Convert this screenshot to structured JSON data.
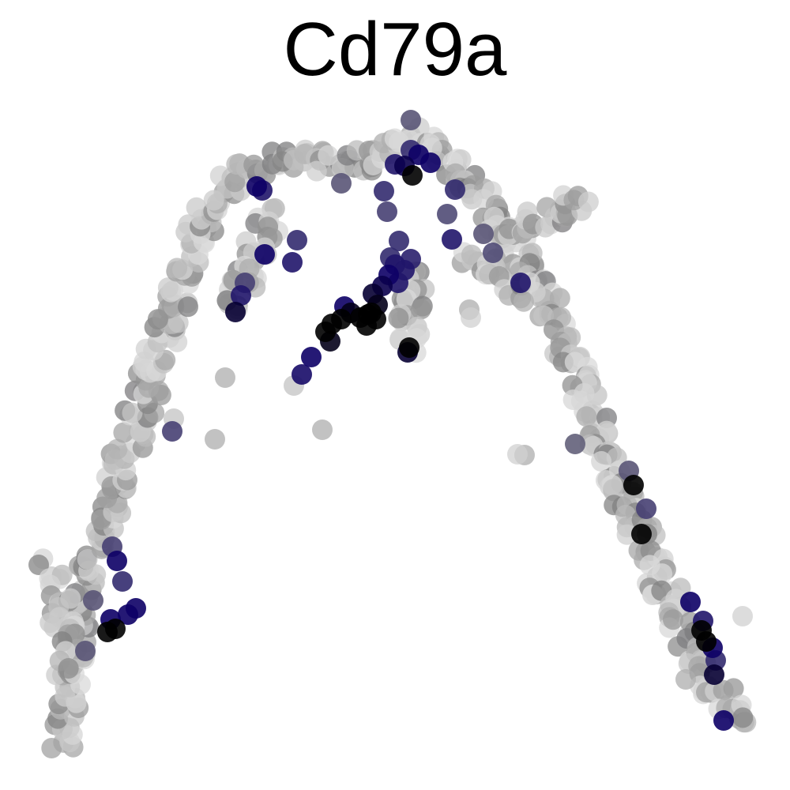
{
  "chart_data": {
    "type": "scatter",
    "title": "Cd79a",
    "xlabel": "",
    "ylabel": "",
    "axes_visible": false,
    "grid": false,
    "legend": "none",
    "color_scale": {
      "low": "#d9d9d9",
      "mid": "#808080",
      "high_blue": "#0d0066",
      "max": "#000000"
    },
    "xlim": [
      0,
      1000
    ],
    "ylim": [
      0,
      1000
    ],
    "skeleton": [
      [
        [
          75,
          945
        ],
        [
          82,
          905
        ],
        [
          88,
          860
        ],
        [
          96,
          815
        ],
        [
          104,
          770
        ],
        [
          112,
          730
        ],
        [
          122,
          690
        ],
        [
          134,
          650
        ],
        [
          146,
          610
        ],
        [
          160,
          570
        ],
        [
          175,
          530
        ],
        [
          190,
          485
        ],
        [
          205,
          440
        ],
        [
          218,
          395
        ],
        [
          232,
          350
        ],
        [
          248,
          305
        ],
        [
          268,
          260
        ],
        [
          295,
          225
        ],
        [
          330,
          205
        ],
        [
          370,
          200
        ],
        [
          410,
          205
        ],
        [
          445,
          210
        ],
        [
          480,
          200
        ],
        [
          500,
          185
        ]
      ],
      [
        [
          500,
          185
        ],
        [
          520,
          170
        ],
        [
          545,
          185
        ],
        [
          570,
          205
        ],
        [
          595,
          230
        ],
        [
          618,
          260
        ],
        [
          640,
          290
        ],
        [
          660,
          325
        ],
        [
          680,
          360
        ],
        [
          700,
          400
        ],
        [
          718,
          440
        ],
        [
          733,
          480
        ],
        [
          748,
          520
        ],
        [
          762,
          560
        ],
        [
          778,
          600
        ],
        [
          795,
          640
        ],
        [
          812,
          680
        ],
        [
          830,
          720
        ],
        [
          848,
          760
        ],
        [
          866,
          800
        ],
        [
          885,
          835
        ],
        [
          905,
          870
        ],
        [
          925,
          900
        ],
        [
          945,
          915
        ]
      ],
      [
        [
          640,
          290
        ],
        [
          665,
          285
        ],
        [
          690,
          275
        ],
        [
          715,
          265
        ],
        [
          745,
          255
        ]
      ],
      [
        [
          520,
          340
        ],
        [
          522,
          370
        ],
        [
          520,
          400
        ],
        [
          518,
          440
        ]
      ],
      [
        [
          345,
          270
        ],
        [
          330,
          300
        ],
        [
          315,
          330
        ],
        [
          305,
          360
        ],
        [
          300,
          390
        ]
      ],
      [
        [
          60,
          720
        ],
        [
          72,
          760
        ],
        [
          80,
          800
        ],
        [
          85,
          840
        ]
      ],
      [
        [
          600,
          320
        ],
        [
          620,
          340
        ],
        [
          645,
          360
        ],
        [
          665,
          375
        ]
      ]
    ],
    "highlighted_points": [
      {
        "x": 522,
        "y": 222,
        "v": 1.0
      },
      {
        "x": 512,
        "y": 210,
        "v": 0.85
      },
      {
        "x": 530,
        "y": 196,
        "v": 0.8
      },
      {
        "x": 545,
        "y": 206,
        "v": 0.8
      },
      {
        "x": 500,
        "y": 208,
        "v": 0.7
      },
      {
        "x": 520,
        "y": 190,
        "v": 0.6
      },
      {
        "x": 486,
        "y": 242,
        "v": 0.6
      },
      {
        "x": 490,
        "y": 268,
        "v": 0.5
      },
      {
        "x": 576,
        "y": 240,
        "v": 0.6
      },
      {
        "x": 520,
        "y": 152,
        "v": 0.4
      },
      {
        "x": 566,
        "y": 271,
        "v": 0.45
      },
      {
        "x": 572,
        "y": 303,
        "v": 0.7
      },
      {
        "x": 612,
        "y": 296,
        "v": 0.4
      },
      {
        "x": 624,
        "y": 320,
        "v": 0.45
      },
      {
        "x": 659,
        "y": 358,
        "v": 0.7
      },
      {
        "x": 325,
        "y": 236,
        "v": 0.8
      },
      {
        "x": 332,
        "y": 241,
        "v": 0.7
      },
      {
        "x": 376,
        "y": 304,
        "v": 0.6
      },
      {
        "x": 370,
        "y": 332,
        "v": 0.7
      },
      {
        "x": 335,
        "y": 322,
        "v": 0.8
      },
      {
        "x": 310,
        "y": 358,
        "v": 0.5
      },
      {
        "x": 305,
        "y": 374,
        "v": 0.7
      },
      {
        "x": 298,
        "y": 395,
        "v": 0.9
      },
      {
        "x": 432,
        "y": 232,
        "v": 0.4
      },
      {
        "x": 505,
        "y": 305,
        "v": 0.6
      },
      {
        "x": 520,
        "y": 328,
        "v": 0.65
      },
      {
        "x": 500,
        "y": 335,
        "v": 0.7
      },
      {
        "x": 492,
        "y": 348,
        "v": 0.8
      },
      {
        "x": 484,
        "y": 362,
        "v": 0.85
      },
      {
        "x": 472,
        "y": 372,
        "v": 0.9
      },
      {
        "x": 478,
        "y": 386,
        "v": 0.95
      },
      {
        "x": 466,
        "y": 398,
        "v": 1.0
      },
      {
        "x": 476,
        "y": 404,
        "v": 1.0
      },
      {
        "x": 456,
        "y": 402,
        "v": 1.0
      },
      {
        "x": 444,
        "y": 396,
        "v": 0.95
      },
      {
        "x": 432,
        "y": 404,
        "v": 1.0
      },
      {
        "x": 420,
        "y": 410,
        "v": 1.0
      },
      {
        "x": 412,
        "y": 420,
        "v": 1.0
      },
      {
        "x": 418,
        "y": 432,
        "v": 0.95
      },
      {
        "x": 464,
        "y": 412,
        "v": 1.0
      },
      {
        "x": 470,
        "y": 396,
        "v": 1.0
      },
      {
        "x": 436,
        "y": 388,
        "v": 0.8
      },
      {
        "x": 494,
        "y": 326,
        "v": 0.6
      },
      {
        "x": 504,
        "y": 358,
        "v": 0.7
      },
      {
        "x": 512,
        "y": 342,
        "v": 0.7
      },
      {
        "x": 394,
        "y": 452,
        "v": 0.8
      },
      {
        "x": 382,
        "y": 474,
        "v": 0.75
      },
      {
        "x": 516,
        "y": 446,
        "v": 0.9
      },
      {
        "x": 518,
        "y": 440,
        "v": 1.0
      },
      {
        "x": 218,
        "y": 546,
        "v": 0.5
      },
      {
        "x": 142,
        "y": 692,
        "v": 0.5
      },
      {
        "x": 148,
        "y": 710,
        "v": 0.8
      },
      {
        "x": 155,
        "y": 736,
        "v": 0.6
      },
      {
        "x": 118,
        "y": 760,
        "v": 0.4
      },
      {
        "x": 172,
        "y": 770,
        "v": 0.8
      },
      {
        "x": 162,
        "y": 778,
        "v": 0.8
      },
      {
        "x": 140,
        "y": 784,
        "v": 0.8
      },
      {
        "x": 146,
        "y": 796,
        "v": 1.0
      },
      {
        "x": 136,
        "y": 800,
        "v": 1.0
      },
      {
        "x": 108,
        "y": 824,
        "v": 0.4
      },
      {
        "x": 728,
        "y": 562,
        "v": 0.35
      },
      {
        "x": 796,
        "y": 596,
        "v": 0.4
      },
      {
        "x": 802,
        "y": 614,
        "v": 1.0
      },
      {
        "x": 818,
        "y": 644,
        "v": 0.5
      },
      {
        "x": 812,
        "y": 676,
        "v": 1.0
      },
      {
        "x": 874,
        "y": 762,
        "v": 0.8
      },
      {
        "x": 890,
        "y": 786,
        "v": 0.7
      },
      {
        "x": 888,
        "y": 798,
        "v": 1.0
      },
      {
        "x": 894,
        "y": 812,
        "v": 1.0
      },
      {
        "x": 902,
        "y": 820,
        "v": 0.8
      },
      {
        "x": 906,
        "y": 836,
        "v": 0.6
      },
      {
        "x": 904,
        "y": 854,
        "v": 0.9
      },
      {
        "x": 916,
        "y": 912,
        "v": 0.8
      }
    ],
    "stray_points": [
      {
        "x": 285,
        "y": 478,
        "v": 0.1
      },
      {
        "x": 272,
        "y": 556,
        "v": 0.1
      },
      {
        "x": 408,
        "y": 544,
        "v": 0.1
      },
      {
        "x": 594,
        "y": 392,
        "v": 0.1
      },
      {
        "x": 664,
        "y": 576,
        "v": 0.1
      },
      {
        "x": 940,
        "y": 780,
        "v": 0.02
      },
      {
        "x": 868,
        "y": 860,
        "v": 0.1
      },
      {
        "x": 220,
        "y": 530,
        "v": 0.05
      },
      {
        "x": 372,
        "y": 488,
        "v": 0.05
      },
      {
        "x": 596,
        "y": 402,
        "v": 0.02
      },
      {
        "x": 655,
        "y": 575,
        "v": 0.02
      }
    ]
  }
}
